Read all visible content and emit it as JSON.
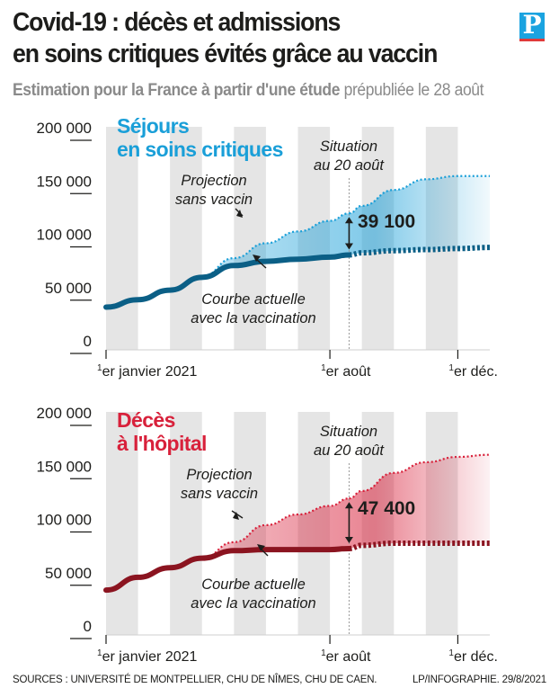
{
  "header": {
    "title_line1": "Covid-19 : décès et admissions",
    "title_line2": "en soins critiques évités grâce au vaccin",
    "subtitle_bold": "Estimation pour la France à partir d'une étude",
    "subtitle_rest": " prépubliée le 28 août",
    "logo": "P"
  },
  "colors": {
    "blue_dark": "#0b5f86",
    "blue_light": "#1a9fd8",
    "red_dark": "#8b1420",
    "red_light": "#d8213b",
    "band": "#e5e5e5"
  },
  "chart_data": [
    {
      "type": "line",
      "title": "Séjours en soins critiques",
      "title_lines": [
        "Séjours",
        "en soins critiques"
      ],
      "ylim": [
        0,
        200000
      ],
      "yticks": [
        0,
        50000,
        100000,
        150000,
        200000
      ],
      "ytick_labels": [
        "0",
        "50 000",
        "100 000",
        "150 000",
        "200 000"
      ],
      "xticks": [
        {
          "sup": "1",
          "label": "er janvier 2021",
          "month": 0
        },
        {
          "sup": "1",
          "label": "er août",
          "month": 7
        },
        {
          "sup": "1",
          "label": "er déc.",
          "month": 11
        }
      ],
      "situation_date_month": 7.6,
      "situation_label": [
        "Situation",
        "au 20 août"
      ],
      "series": [
        {
          "name": "Courbe actuelle avec la vaccination",
          "x": [
            0,
            1,
            2,
            3,
            4,
            5,
            6,
            7,
            7.6
          ],
          "values": [
            35000,
            42000,
            51000,
            63000,
            74000,
            78000,
            80000,
            82000,
            84000
          ]
        },
        {
          "name": "Courbe actuelle avec la vaccination (projection)",
          "x": [
            7.6,
            8,
            9,
            10,
            11,
            12
          ],
          "values": [
            84000,
            86000,
            88000,
            89000,
            90000,
            91000
          ]
        },
        {
          "name": "Projection sans vaccin",
          "x": [
            0,
            1,
            2,
            3,
            4,
            5,
            6,
            7,
            7.6
          ],
          "values": [
            35000,
            42000,
            51000,
            64000,
            81000,
            95000,
            106000,
            116000,
            123000
          ]
        },
        {
          "name": "Projection sans vaccin (suite)",
          "x": [
            7.6,
            8,
            9,
            10,
            11,
            12
          ],
          "values": [
            123000,
            130000,
            145000,
            155000,
            158000,
            158000
          ]
        }
      ],
      "annotations": {
        "difference": "39 100",
        "projection": [
          "Projection",
          "sans vaccin"
        ],
        "current": [
          "Courbe actuelle",
          "avec la vaccination"
        ]
      }
    },
    {
      "type": "line",
      "title": "Décès à l'hôpital",
      "title_lines": [
        "Décès",
        "à l'hôpital"
      ],
      "ylim": [
        0,
        200000
      ],
      "yticks": [
        0,
        50000,
        100000,
        150000,
        200000
      ],
      "ytick_labels": [
        "0",
        "50 000",
        "100 000",
        "150 000",
        "200 000"
      ],
      "xticks": [
        {
          "sup": "1",
          "label": "er janvier 2021",
          "month": 0
        },
        {
          "sup": "1",
          "label": "er août",
          "month": 7
        },
        {
          "sup": "1",
          "label": "er déc.",
          "month": 11
        }
      ],
      "situation_date_month": 7.6,
      "situation_label": [
        "Situation",
        "au 20 août"
      ],
      "series": [
        {
          "name": "Courbe actuelle avec la vaccination",
          "x": [
            0,
            1,
            2,
            3,
            4,
            5,
            6,
            7,
            7.6
          ],
          "values": [
            37000,
            49000,
            58000,
            67000,
            74000,
            75000,
            75000,
            75000,
            76000
          ]
        },
        {
          "name": "Courbe actuelle avec la vaccination (projection)",
          "x": [
            7.6,
            8,
            9,
            10,
            11,
            12
          ],
          "values": [
            76000,
            79000,
            81000,
            81000,
            81000,
            81000
          ]
        },
        {
          "name": "Projection sans vaccin",
          "x": [
            0,
            1,
            2,
            3,
            4,
            5,
            6,
            7,
            7.6
          ],
          "values": [
            37000,
            49000,
            58000,
            67000,
            82000,
            98000,
            108000,
            116000,
            123000
          ]
        },
        {
          "name": "Projection sans vaccin (suite)",
          "x": [
            7.6,
            8,
            9,
            10,
            11,
            12
          ],
          "values": [
            123000,
            130000,
            147000,
            157000,
            162000,
            164000
          ]
        }
      ],
      "annotations": {
        "difference": "47 400",
        "projection": [
          "Projection",
          "sans vaccin"
        ],
        "current": [
          "Courbe actuelle",
          "avec la vaccination"
        ]
      }
    }
  ],
  "footer": {
    "sources": "SOURCES : UNIVERSITÉ DE MONTPELLIER, CHU DE NÎMES, CHU DE CAEN.",
    "credit": "LP/INFOGRAPHIE. 29/8/2021"
  }
}
